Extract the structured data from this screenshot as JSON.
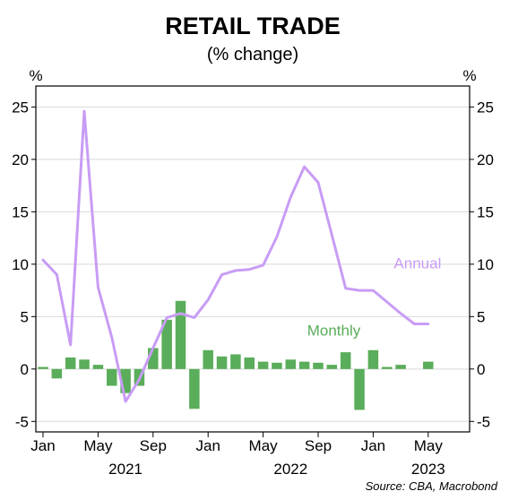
{
  "chart_data": {
    "type": "bar+line",
    "title": "RETAIL TRADE",
    "subtitle": "(% change)",
    "unit_left": "%",
    "unit_right": "%",
    "source": "Source: CBA, Macrobond",
    "ylim": [
      -6,
      27
    ],
    "yticks": [
      25,
      20,
      15,
      10,
      5,
      0,
      -5
    ],
    "xlim": [
      0,
      31
    ],
    "xticks": [
      {
        "month": 0,
        "label": "Jan"
      },
      {
        "month": 4,
        "label": "May"
      },
      {
        "month": 8,
        "label": "Sep"
      },
      {
        "month": 12,
        "label": "Jan"
      },
      {
        "month": 16,
        "label": "May"
      },
      {
        "month": 20,
        "label": "Sep"
      },
      {
        "month": 24,
        "label": "Jan"
      },
      {
        "month": 28,
        "label": "May"
      }
    ],
    "year_labels": [
      {
        "month": 6,
        "label": "2021"
      },
      {
        "month": 18,
        "label": "2022"
      },
      {
        "month": 28,
        "label": "2023"
      }
    ],
    "grid": true,
    "series": [
      {
        "name": "Monthly",
        "type": "bar",
        "color": "#5aad5a",
        "label_color": "#5aad5a",
        "label_at": {
          "month": 19.2,
          "value": 3.2
        },
        "values": [
          0.2,
          -0.9,
          1.1,
          0.9,
          0.4,
          -1.6,
          -2.3,
          -1.6,
          2.0,
          4.7,
          6.5,
          -3.8,
          1.8,
          1.2,
          1.4,
          1.1,
          0.7,
          0.6,
          0.9,
          0.7,
          0.6,
          0.4,
          1.6,
          -3.9,
          1.8,
          0.2,
          0.4,
          null,
          0.7
        ]
      },
      {
        "name": "Annual",
        "type": "line",
        "color": "#c89cf5",
        "label_color": "#c89cf5",
        "label_at": {
          "month": 25.5,
          "value": 9.6
        },
        "values": [
          10.4,
          9.0,
          2.3,
          24.6,
          7.8,
          3.0,
          -3.1,
          -1.0,
          2.0,
          4.9,
          5.3,
          4.9,
          6.6,
          9.0,
          9.4,
          9.5,
          9.9,
          12.6,
          16.4,
          19.3,
          17.8,
          12.8,
          7.7,
          7.5,
          7.5,
          6.4,
          5.3,
          4.3,
          4.3
        ]
      }
    ]
  }
}
